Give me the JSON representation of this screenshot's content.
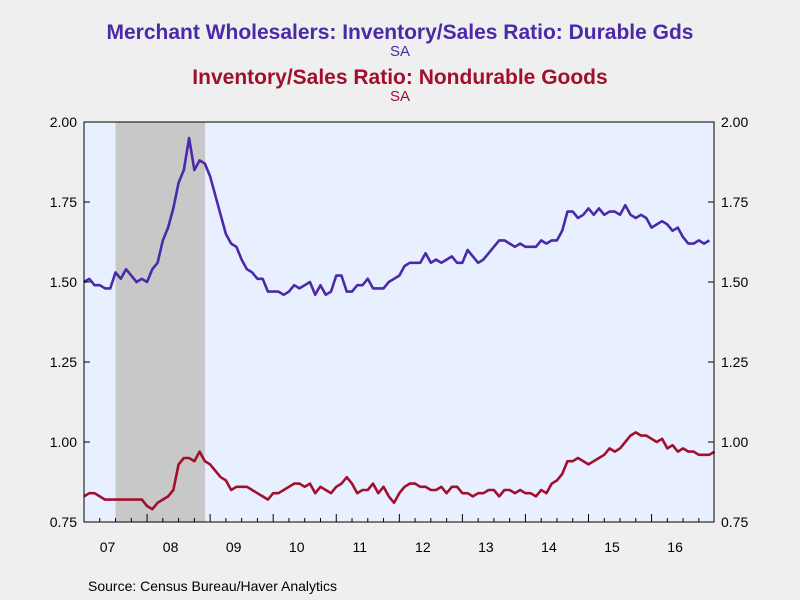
{
  "chart_data": {
    "type": "line",
    "title_lines": [
      {
        "text": "Merchant Wholesalers: Inventory/Sales Ratio: Durable Gds",
        "color": "#4a2aa8"
      },
      {
        "text": "SA",
        "color": "#4a2aa8"
      },
      {
        "text": "Inventory/Sales Ratio: Nondurable Goods",
        "color": "#a0102e"
      },
      {
        "text": "SA",
        "color": "#a0102e"
      }
    ],
    "y_ticks": [
      "2.00",
      "1.75",
      "1.50",
      "1.25",
      "1.00",
      "0.75"
    ],
    "x_ticks": [
      "07",
      "08",
      "09",
      "10",
      "11",
      "12",
      "13",
      "14",
      "15",
      "16"
    ],
    "ylim": [
      0.75,
      2.0
    ],
    "x_range": [
      2007.0,
      2016.99
    ],
    "recession_shading": {
      "start": 2007.5,
      "end": 2008.92,
      "color": "#c8c8c8"
    },
    "plot_background": "#e8f0ff",
    "series": [
      {
        "name": "Merchant Wholesalers: Inventory/Sales Ratio: Durable Gds",
        "color": "#4a2aa8",
        "start": 2007.0,
        "step": 0.08333,
        "values": [
          1.5,
          1.51,
          1.49,
          1.49,
          1.48,
          1.48,
          1.53,
          1.51,
          1.54,
          1.52,
          1.5,
          1.51,
          1.5,
          1.54,
          1.56,
          1.63,
          1.67,
          1.73,
          1.81,
          1.85,
          1.95,
          1.85,
          1.88,
          1.87,
          1.83,
          1.77,
          1.71,
          1.65,
          1.62,
          1.61,
          1.57,
          1.54,
          1.53,
          1.51,
          1.51,
          1.47,
          1.47,
          1.47,
          1.46,
          1.47,
          1.49,
          1.48,
          1.49,
          1.5,
          1.46,
          1.49,
          1.46,
          1.47,
          1.52,
          1.52,
          1.47,
          1.47,
          1.49,
          1.49,
          1.51,
          1.48,
          1.48,
          1.48,
          1.5,
          1.51,
          1.52,
          1.55,
          1.56,
          1.56,
          1.56,
          1.59,
          1.56,
          1.57,
          1.56,
          1.57,
          1.58,
          1.56,
          1.56,
          1.6,
          1.58,
          1.56,
          1.57,
          1.59,
          1.61,
          1.63,
          1.63,
          1.62,
          1.61,
          1.62,
          1.61,
          1.61,
          1.61,
          1.63,
          1.62,
          1.63,
          1.63,
          1.66,
          1.72,
          1.72,
          1.7,
          1.71,
          1.73,
          1.71,
          1.73,
          1.71,
          1.72,
          1.72,
          1.71,
          1.74,
          1.71,
          1.7,
          1.71,
          1.7,
          1.67,
          1.68,
          1.69,
          1.68,
          1.66,
          1.67,
          1.64,
          1.62,
          1.62,
          1.63,
          1.62,
          1.63
        ]
      },
      {
        "name": "Inventory/Sales Ratio: Nondurable Goods",
        "color": "#a0102e",
        "start": 2007.0,
        "step": 0.08333,
        "values": [
          0.83,
          0.84,
          0.84,
          0.83,
          0.82,
          0.82,
          0.82,
          0.82,
          0.82,
          0.82,
          0.82,
          0.82,
          0.8,
          0.79,
          0.81,
          0.82,
          0.83,
          0.85,
          0.93,
          0.95,
          0.95,
          0.94,
          0.97,
          0.94,
          0.93,
          0.91,
          0.89,
          0.88,
          0.85,
          0.86,
          0.86,
          0.86,
          0.85,
          0.84,
          0.83,
          0.82,
          0.84,
          0.84,
          0.85,
          0.86,
          0.87,
          0.87,
          0.86,
          0.87,
          0.84,
          0.86,
          0.85,
          0.84,
          0.86,
          0.87,
          0.89,
          0.87,
          0.84,
          0.85,
          0.85,
          0.87,
          0.84,
          0.86,
          0.83,
          0.81,
          0.84,
          0.86,
          0.87,
          0.87,
          0.86,
          0.86,
          0.85,
          0.85,
          0.86,
          0.84,
          0.86,
          0.86,
          0.84,
          0.84,
          0.83,
          0.84,
          0.84,
          0.85,
          0.85,
          0.83,
          0.85,
          0.85,
          0.84,
          0.85,
          0.84,
          0.84,
          0.83,
          0.85,
          0.84,
          0.87,
          0.88,
          0.9,
          0.94,
          0.94,
          0.95,
          0.94,
          0.93,
          0.94,
          0.95,
          0.96,
          0.98,
          0.97,
          0.98,
          1.0,
          1.02,
          1.03,
          1.02,
          1.02,
          1.01,
          1.0,
          1.01,
          0.98,
          0.99,
          0.97,
          0.98,
          0.97,
          0.97,
          0.96,
          0.96,
          0.96,
          0.97
        ]
      }
    ]
  },
  "source": "Source:  Census Bureau/Haver Analytics"
}
